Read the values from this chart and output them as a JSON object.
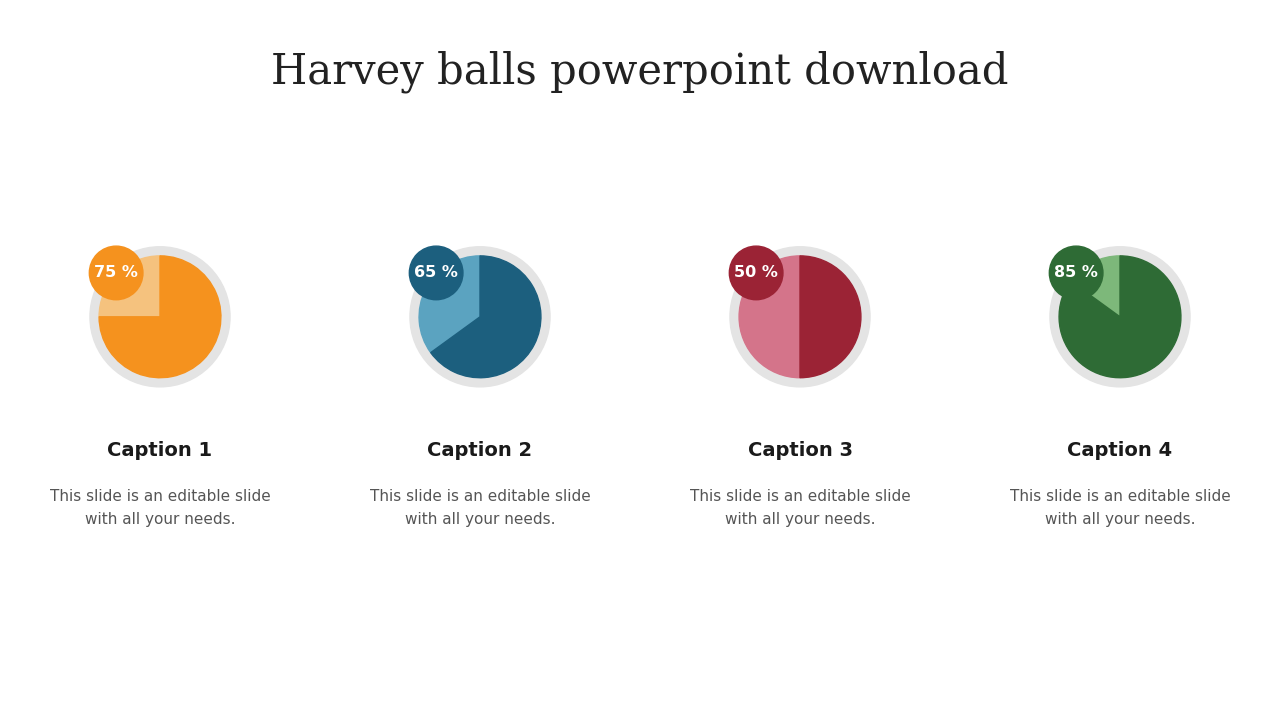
{
  "title": "Harvey balls powerpoint download",
  "title_fontsize": 30,
  "background_color": "#ffffff",
  "footer_color": "#c8c8c8",
  "balls": [
    {
      "percent": 75,
      "label": "75 %",
      "fill_color": "#F5921E",
      "light_color": "#F5C27E",
      "badge_color": "#F5921E",
      "caption_title": "Caption 1",
      "caption_text": "This slide is an editable slide\nwith all your needs."
    },
    {
      "percent": 65,
      "label": "65 %",
      "fill_color": "#1C5F7E",
      "light_color": "#5BA3C0",
      "badge_color": "#1C5F7E",
      "caption_title": "Caption 2",
      "caption_text": "This slide is an editable slide\nwith all your needs."
    },
    {
      "percent": 50,
      "label": "50 %",
      "fill_color": "#9B2335",
      "light_color": "#D4748A",
      "badge_color": "#9B2335",
      "caption_title": "Caption 3",
      "caption_text": "This slide is an editable slide\nwith all your needs."
    },
    {
      "percent": 85,
      "label": "85 %",
      "fill_color": "#2E6B35",
      "light_color": "#7DB87A",
      "badge_color": "#2E6B35",
      "caption_title": "Caption 4",
      "caption_text": "This slide is an editable slide\nwith all your needs."
    }
  ],
  "circle_bg_color": "#e4e4e4",
  "caption_title_fontsize": 14,
  "caption_text_fontsize": 11
}
